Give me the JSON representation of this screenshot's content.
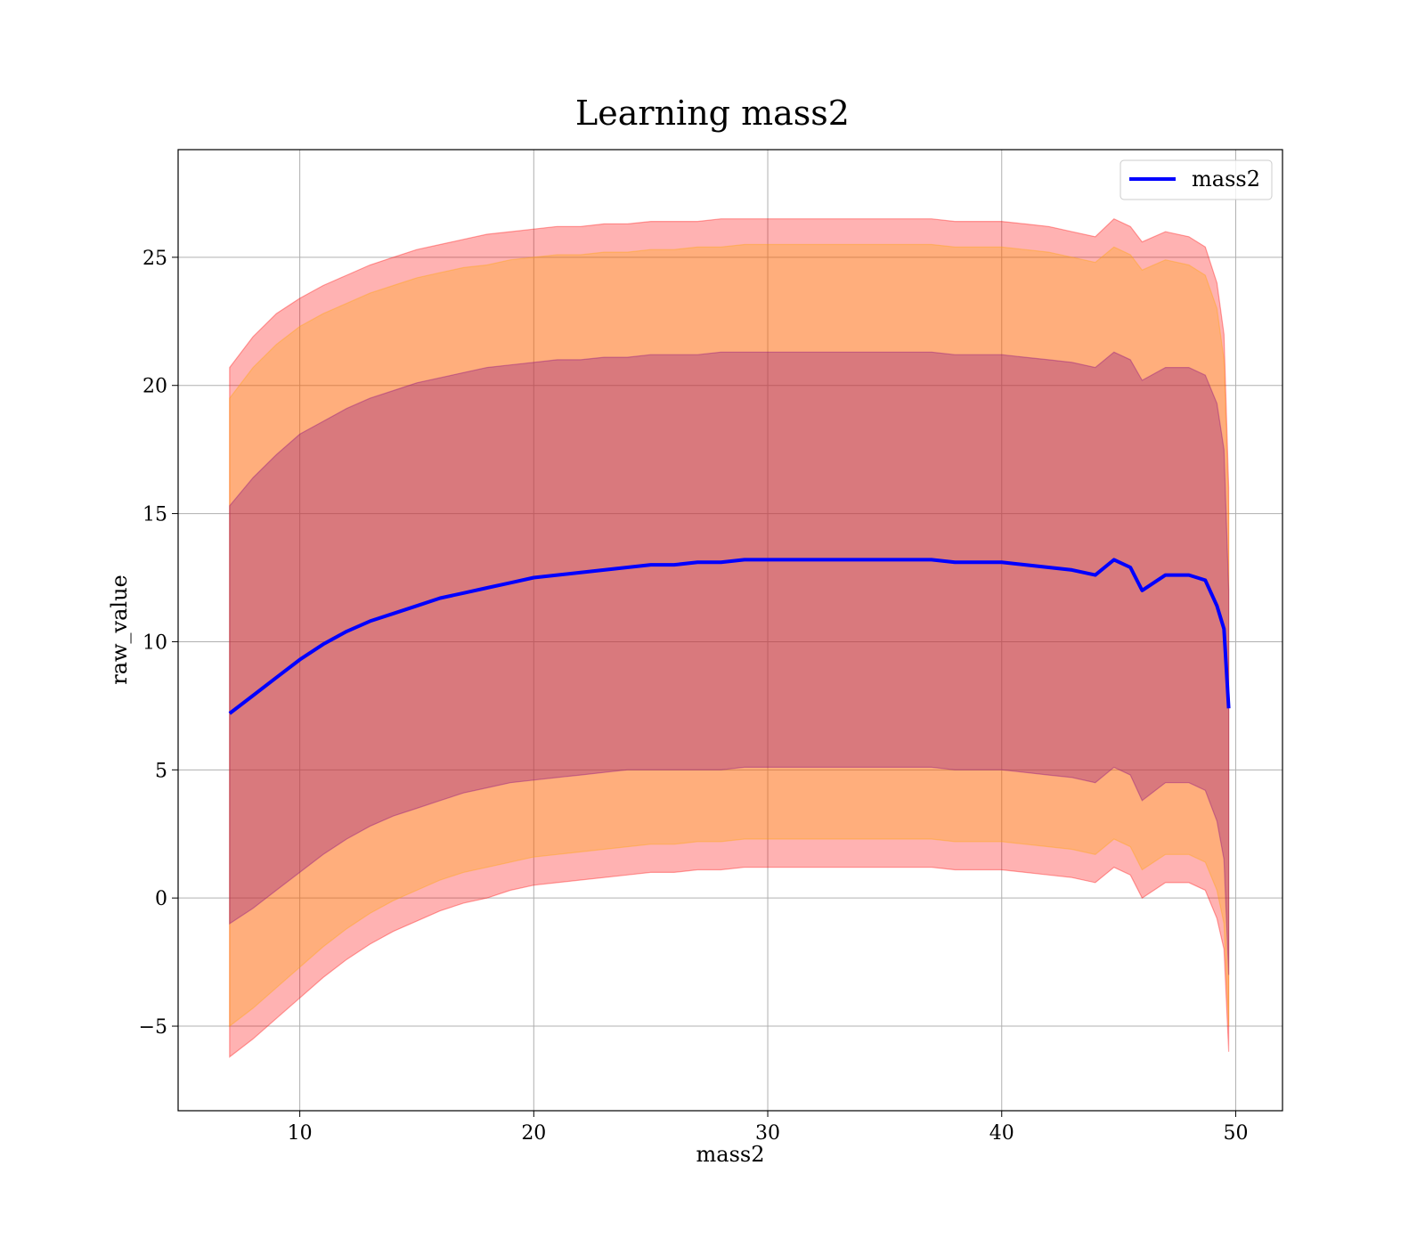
{
  "chart_data": {
    "type": "line",
    "title": "Learning mass2",
    "xlabel": "mass2",
    "ylabel": "raw_value",
    "xlim": [
      4.8,
      52
    ],
    "ylim": [
      -8.3,
      29.2
    ],
    "x_ticks": [
      10,
      20,
      30,
      40,
      50
    ],
    "y_ticks": [
      -5,
      0,
      5,
      10,
      15,
      20,
      25
    ],
    "x_tick_labels": [
      "10",
      "20",
      "30",
      "40",
      "50"
    ],
    "y_tick_labels": [
      "−5",
      "0",
      "5",
      "10",
      "15",
      "20",
      "25"
    ],
    "grid": true,
    "legend_position": "top-right",
    "series": [
      {
        "name": "mass2",
        "color": "#0000ff",
        "x": [
          7,
          8,
          9,
          10,
          11,
          12,
          13,
          14,
          15,
          16,
          17,
          18,
          19,
          20,
          21,
          22,
          23,
          24,
          25,
          26,
          27,
          28,
          29,
          30,
          31,
          32,
          33,
          34,
          35,
          36,
          37,
          38,
          39,
          40,
          41,
          42,
          43,
          44,
          44.8,
          45.5,
          46,
          47,
          48,
          48.7,
          49.2,
          49.5,
          49.7
        ],
        "values": [
          7.2,
          7.9,
          8.6,
          9.3,
          9.9,
          10.4,
          10.8,
          11.1,
          11.4,
          11.7,
          11.9,
          12.1,
          12.3,
          12.5,
          12.6,
          12.7,
          12.8,
          12.9,
          13.0,
          13.0,
          13.1,
          13.1,
          13.2,
          13.2,
          13.2,
          13.2,
          13.2,
          13.2,
          13.2,
          13.2,
          13.2,
          13.1,
          13.1,
          13.1,
          13.0,
          12.9,
          12.8,
          12.6,
          13.2,
          12.9,
          12.0,
          12.6,
          12.6,
          12.4,
          11.4,
          10.5,
          7.4
        ]
      }
    ],
    "bands": [
      {
        "sigma": 3,
        "color": "#ff0000",
        "upper": [
          20.7,
          21.9,
          22.8,
          23.4,
          23.9,
          24.3,
          24.7,
          25.0,
          25.3,
          25.5,
          25.7,
          25.9,
          26.0,
          26.1,
          26.2,
          26.2,
          26.3,
          26.3,
          26.4,
          26.4,
          26.4,
          26.5,
          26.5,
          26.5,
          26.5,
          26.5,
          26.5,
          26.5,
          26.5,
          26.5,
          26.5,
          26.4,
          26.4,
          26.4,
          26.3,
          26.2,
          26.0,
          25.8,
          26.5,
          26.2,
          25.6,
          26.0,
          25.8,
          25.4,
          24.0,
          22.0,
          16.0
        ],
        "lower": [
          -6.2,
          -5.5,
          -4.7,
          -3.9,
          -3.1,
          -2.4,
          -1.8,
          -1.3,
          -0.9,
          -0.5,
          -0.2,
          0.0,
          0.3,
          0.5,
          0.6,
          0.7,
          0.8,
          0.9,
          1.0,
          1.0,
          1.1,
          1.1,
          1.2,
          1.2,
          1.2,
          1.2,
          1.2,
          1.2,
          1.2,
          1.2,
          1.2,
          1.1,
          1.1,
          1.1,
          1.0,
          0.9,
          0.8,
          0.6,
          1.2,
          0.9,
          0.0,
          0.6,
          0.6,
          0.3,
          -0.8,
          -2.0,
          -6.0
        ]
      },
      {
        "sigma": 2,
        "color": "#ffa500",
        "upper": [
          19.5,
          20.7,
          21.6,
          22.3,
          22.8,
          23.2,
          23.6,
          23.9,
          24.2,
          24.4,
          24.6,
          24.7,
          24.9,
          25.0,
          25.1,
          25.1,
          25.2,
          25.2,
          25.3,
          25.3,
          25.4,
          25.4,
          25.5,
          25.5,
          25.5,
          25.5,
          25.5,
          25.5,
          25.5,
          25.5,
          25.5,
          25.4,
          25.4,
          25.4,
          25.3,
          25.2,
          25.0,
          24.8,
          25.4,
          25.1,
          24.5,
          24.9,
          24.7,
          24.3,
          23.0,
          21.0,
          15.0
        ],
        "lower": [
          -5.0,
          -4.3,
          -3.5,
          -2.7,
          -1.9,
          -1.2,
          -0.6,
          -0.1,
          0.3,
          0.7,
          1.0,
          1.2,
          1.4,
          1.6,
          1.7,
          1.8,
          1.9,
          2.0,
          2.1,
          2.1,
          2.2,
          2.2,
          2.3,
          2.3,
          2.3,
          2.3,
          2.3,
          2.3,
          2.3,
          2.3,
          2.3,
          2.2,
          2.2,
          2.2,
          2.1,
          2.0,
          1.9,
          1.7,
          2.3,
          2.0,
          1.1,
          1.7,
          1.7,
          1.4,
          0.3,
          -1.0,
          -5.0
        ]
      },
      {
        "sigma": 1,
        "color": "#800080",
        "upper": [
          15.3,
          16.4,
          17.3,
          18.1,
          18.6,
          19.1,
          19.5,
          19.8,
          20.1,
          20.3,
          20.5,
          20.7,
          20.8,
          20.9,
          21.0,
          21.0,
          21.1,
          21.1,
          21.2,
          21.2,
          21.2,
          21.3,
          21.3,
          21.3,
          21.3,
          21.3,
          21.3,
          21.3,
          21.3,
          21.3,
          21.3,
          21.2,
          21.2,
          21.2,
          21.1,
          21.0,
          20.9,
          20.7,
          21.3,
          21.0,
          20.2,
          20.7,
          20.7,
          20.4,
          19.3,
          17.5,
          12.0
        ],
        "lower": [
          -1.0,
          -0.4,
          0.3,
          1.0,
          1.7,
          2.3,
          2.8,
          3.2,
          3.5,
          3.8,
          4.1,
          4.3,
          4.5,
          4.6,
          4.7,
          4.8,
          4.9,
          5.0,
          5.0,
          5.0,
          5.0,
          5.0,
          5.1,
          5.1,
          5.1,
          5.1,
          5.1,
          5.1,
          5.1,
          5.1,
          5.1,
          5.0,
          5.0,
          5.0,
          4.9,
          4.8,
          4.7,
          4.5,
          5.1,
          4.8,
          3.8,
          4.5,
          4.5,
          4.2,
          3.0,
          1.5,
          -3.0
        ]
      }
    ]
  }
}
